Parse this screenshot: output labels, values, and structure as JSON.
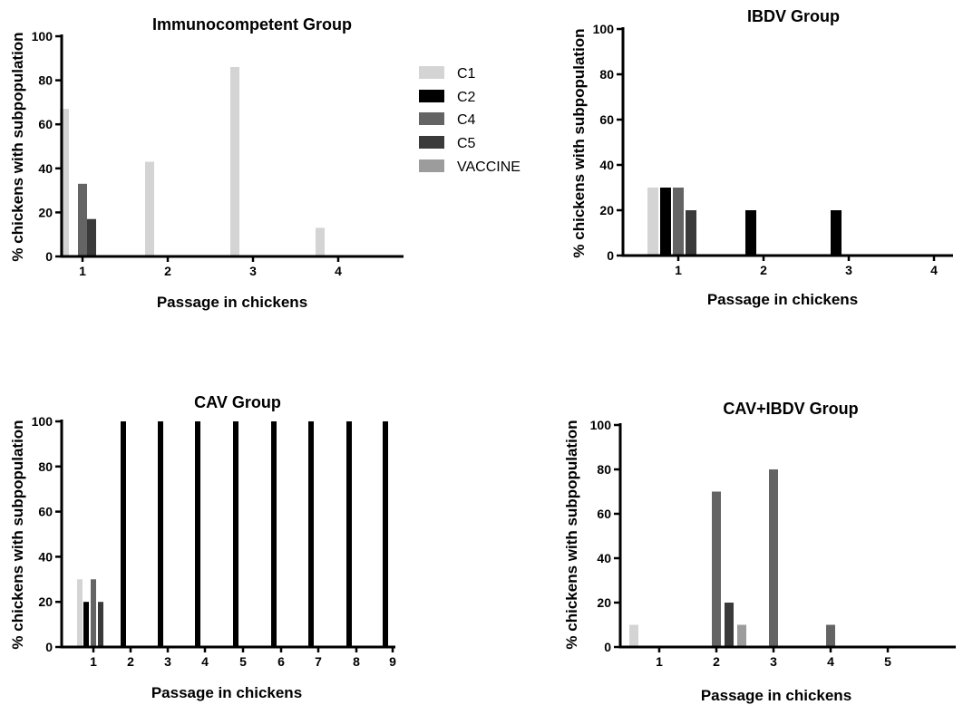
{
  "colors": {
    "C1": "#d4d4d4",
    "C2": "#000000",
    "C4": "#646464",
    "C5": "#3a3a3a",
    "VACCINE": "#9c9c9c"
  },
  "legend": {
    "entries": [
      "C1",
      "C2",
      "C4",
      "C5",
      "VACCINE"
    ]
  },
  "chart_data": [
    {
      "type": "bar",
      "title": "Immunocompetent Group",
      "xlabel": "Passage in chickens",
      "ylabel": "% chickens with subpopulation",
      "categories": [
        "1",
        "2",
        "3",
        "4"
      ],
      "ylim": [
        0,
        100
      ],
      "yticks": [
        "0",
        "20",
        "40",
        "60",
        "80",
        "100"
      ],
      "series": [
        {
          "name": "C1",
          "values": [
            67,
            43,
            86,
            13
          ]
        },
        {
          "name": "C2",
          "values": [
            0,
            0,
            0,
            0
          ]
        },
        {
          "name": "C4",
          "values": [
            33,
            0,
            0,
            0
          ]
        },
        {
          "name": "C5",
          "values": [
            17,
            0,
            0,
            0
          ]
        },
        {
          "name": "VACCINE",
          "values": [
            0,
            0,
            0,
            0
          ]
        }
      ]
    },
    {
      "type": "bar",
      "title": "IBDV Group",
      "xlabel": "Passage in chickens",
      "ylabel": "% chickens with subpopulation",
      "categories": [
        "1",
        "2",
        "3",
        "4"
      ],
      "ylim": [
        0,
        100
      ],
      "yticks": [
        "0",
        "20",
        "40",
        "60",
        "80",
        "100"
      ],
      "series": [
        {
          "name": "C1",
          "values": [
            30,
            0,
            0,
            0
          ]
        },
        {
          "name": "C2",
          "values": [
            30,
            20,
            20,
            0
          ]
        },
        {
          "name": "C4",
          "values": [
            30,
            0,
            0,
            0
          ]
        },
        {
          "name": "C5",
          "values": [
            20,
            0,
            0,
            0
          ]
        },
        {
          "name": "VACCINE",
          "values": [
            0,
            0,
            0,
            0
          ]
        }
      ]
    },
    {
      "type": "bar",
      "title": "CAV Group",
      "xlabel": "Passage in chickens",
      "ylabel": "% chickens with subpopulation",
      "categories": [
        "1",
        "2",
        "3",
        "4",
        "5",
        "6",
        "7",
        "8",
        "9"
      ],
      "ylim": [
        0,
        100
      ],
      "yticks": [
        "0",
        "20",
        "40",
        "60",
        "80",
        "100"
      ],
      "series": [
        {
          "name": "C1",
          "values": [
            30,
            0,
            0,
            0,
            0,
            0,
            0,
            0,
            0
          ]
        },
        {
          "name": "C2",
          "values": [
            20,
            100,
            100,
            100,
            100,
            100,
            100,
            100,
            100
          ]
        },
        {
          "name": "C4",
          "values": [
            30,
            0,
            0,
            0,
            0,
            0,
            0,
            0,
            0
          ]
        },
        {
          "name": "C5",
          "values": [
            20,
            0,
            0,
            0,
            0,
            0,
            0,
            0,
            0
          ]
        },
        {
          "name": "VACCINE",
          "values": [
            0,
            0,
            0,
            0,
            0,
            0,
            0,
            0,
            0
          ]
        }
      ]
    },
    {
      "type": "bar",
      "title": "CAV+IBDV Group",
      "xlabel": "Passage in chickens",
      "ylabel": "% chickens with subpopulation",
      "categories": [
        "1",
        "2",
        "3",
        "4",
        "5"
      ],
      "ylim": [
        0,
        100
      ],
      "yticks": [
        "0",
        "20",
        "40",
        "60",
        "80",
        "100"
      ],
      "series": [
        {
          "name": "C1",
          "values": [
            10,
            0,
            0,
            0,
            0
          ]
        },
        {
          "name": "C2",
          "values": [
            0,
            0,
            0,
            0,
            0
          ]
        },
        {
          "name": "C4",
          "values": [
            0,
            70,
            80,
            10,
            0
          ]
        },
        {
          "name": "C5",
          "values": [
            0,
            20,
            0,
            0,
            0
          ]
        },
        {
          "name": "VACCINE",
          "values": [
            0,
            10,
            0,
            0,
            0
          ]
        }
      ]
    }
  ]
}
